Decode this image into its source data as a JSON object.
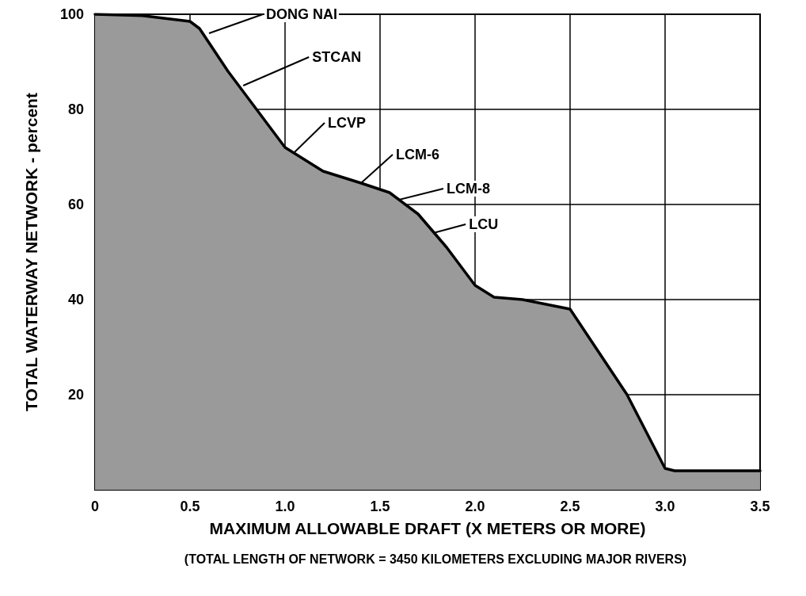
{
  "chart_data": {
    "type": "area",
    "xlabel": "MAXIMUM ALLOWABLE DRAFT (X METERS OR MORE)",
    "ylabel": "TOTAL WATERWAY NETWORK - percent",
    "x": [
      0,
      0.25,
      0.5,
      0.55,
      0.7,
      0.85,
      1.0,
      1.2,
      1.4,
      1.55,
      1.7,
      1.85,
      2.0,
      2.1,
      2.25,
      2.5,
      2.6,
      2.8,
      3.0,
      3.05,
      3.5
    ],
    "series": [
      {
        "color": "#000000",
        "values": [
          100,
          99.7,
          98.5,
          97,
          88,
          80,
          72,
          67,
          64.5,
          62.5,
          58,
          51,
          43,
          40.5,
          40,
          38,
          32,
          20,
          4.5,
          4,
          4
        ]
      }
    ],
    "xlim": [
      0,
      3.5
    ],
    "ylim": [
      0,
      100
    ],
    "xticks": [
      0,
      0.5,
      {
        "value": 1,
        "label": "1.0"
      },
      1.5,
      {
        "value": 2,
        "label": "2.0"
      },
      2.5,
      {
        "value": 3,
        "label": "3.0"
      },
      3.5
    ],
    "yticks": [
      {
        "value": 0,
        "label": null
      },
      20,
      40,
      60,
      80,
      100
    ],
    "grid": true,
    "marker": "none",
    "line_style": "solid",
    "annotations": [
      {
        "text": "DONG NAI",
        "x": 0.6,
        "y": 96
      },
      {
        "text": "STCAN",
        "x": 0.78,
        "y": 85
      },
      {
        "text": "LCVP",
        "x": 1.05,
        "y": 71
      },
      {
        "text": "LCM-6",
        "x": 1.4,
        "y": 64.5
      },
      {
        "text": "LCM-8",
        "x": 1.6,
        "y": 61
      },
      {
        "text": "LCU",
        "x": 1.78,
        "y": 54
      },
      "(TOTAL LENGTH OF NETWORK = 3450 KILOMETERS EXCLUDING MAJOR RIVERS)"
    ]
  }
}
